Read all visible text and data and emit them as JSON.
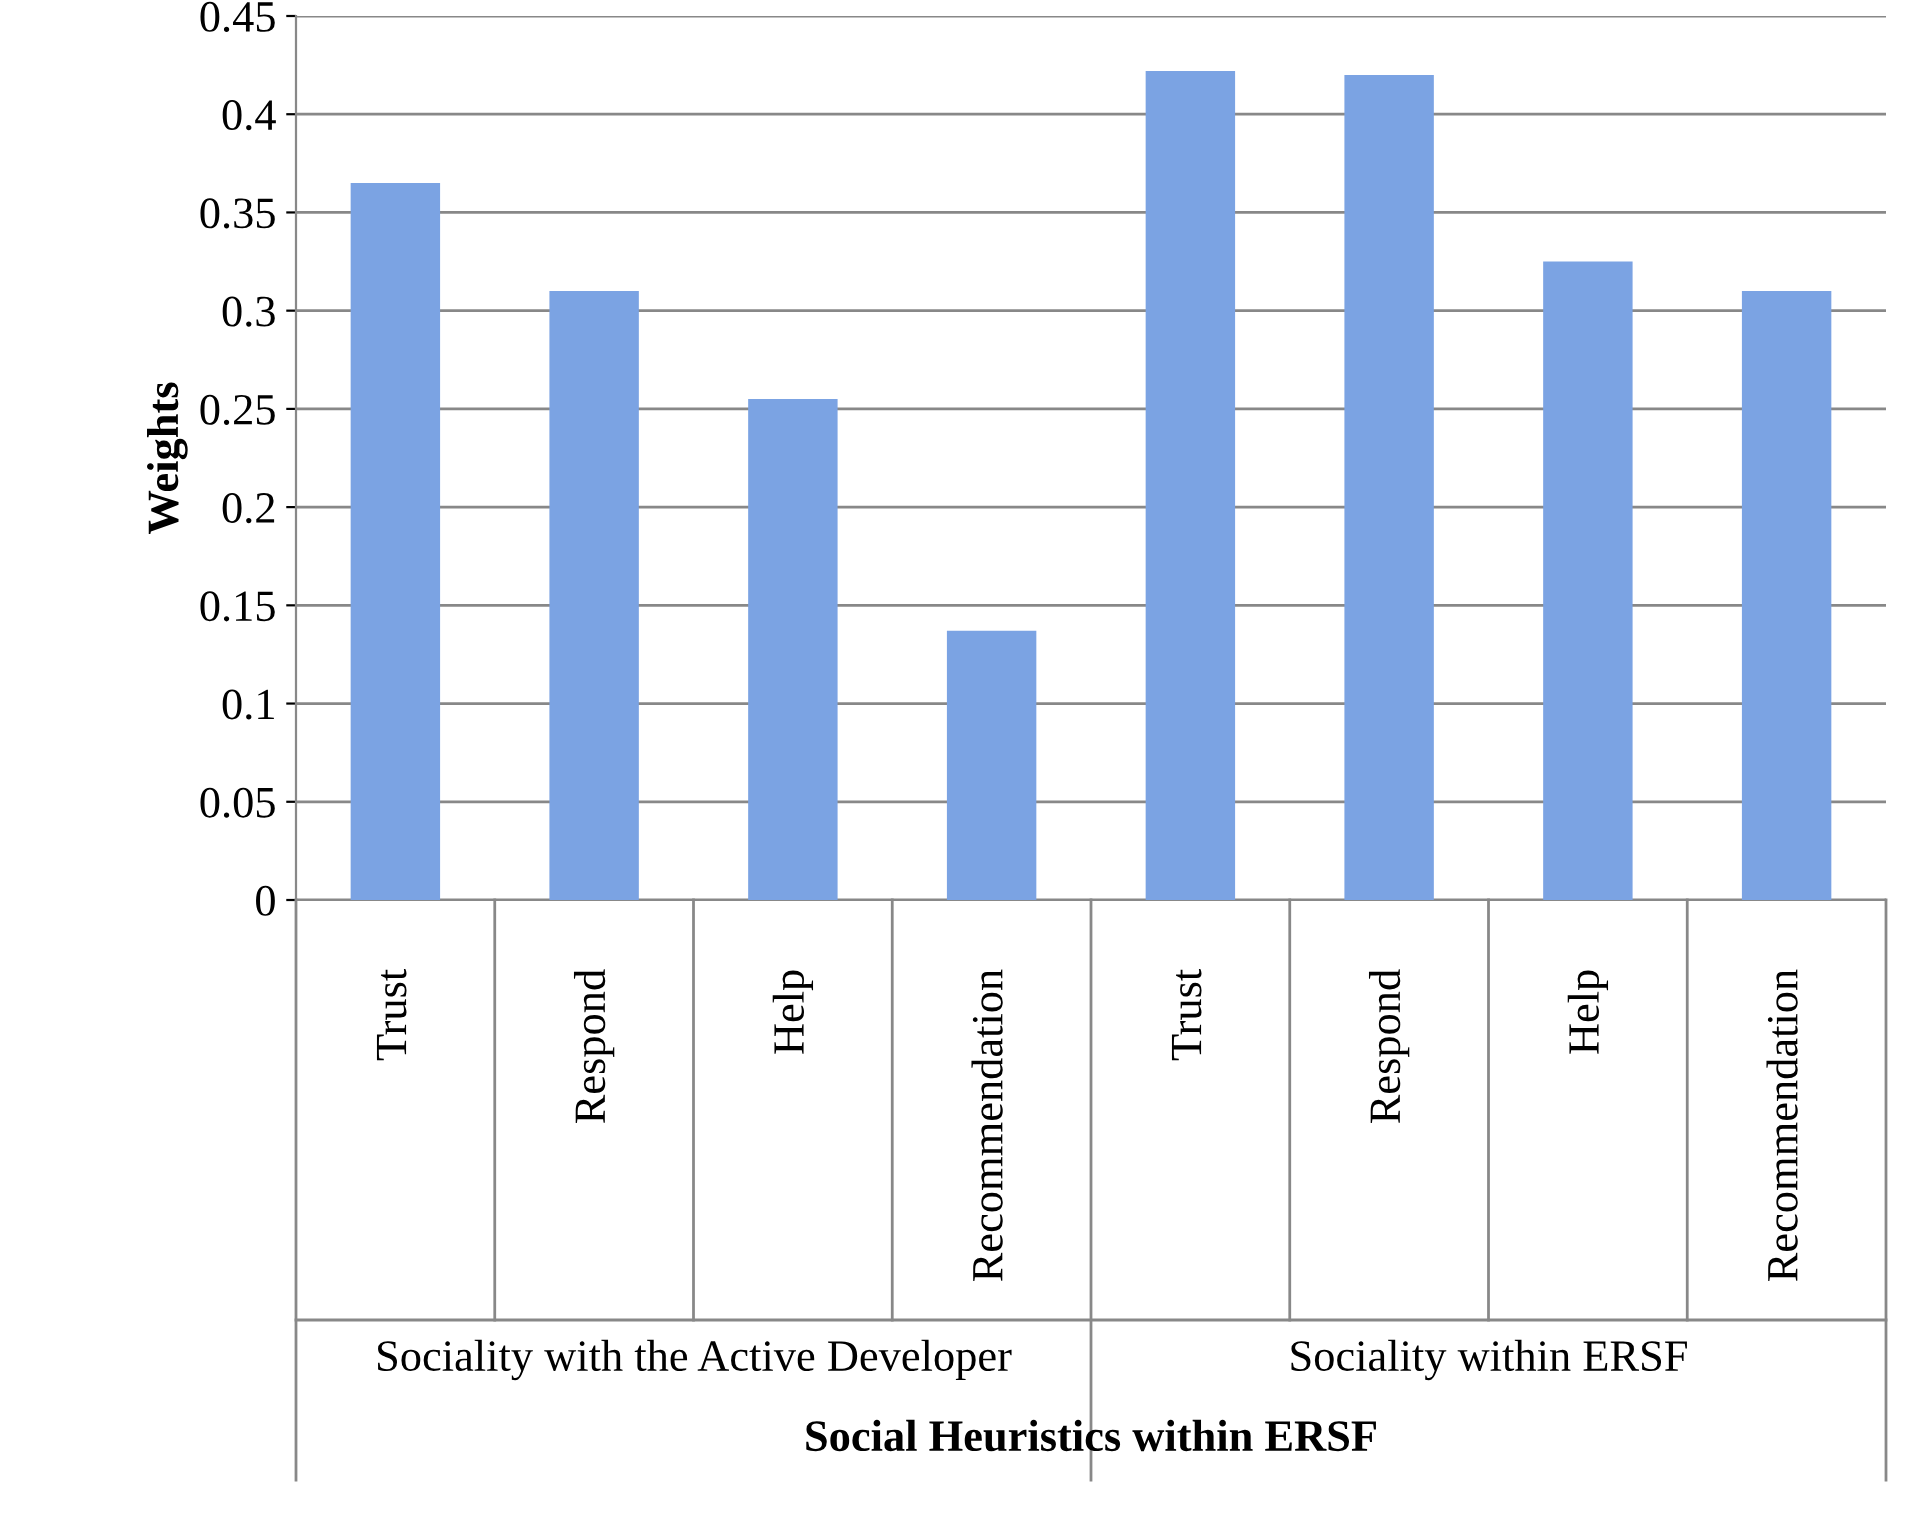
{
  "chart_data": {
    "type": "bar",
    "xlabel": "Social Heuristics within ERSF",
    "ylabel": "Weights",
    "categories": [
      "Trust",
      "Respond",
      "Help",
      "Recommendation",
      "Trust",
      "Respond",
      "Help",
      "Recommendation"
    ],
    "values": [
      0.365,
      0.31,
      0.255,
      0.137,
      0.422,
      0.42,
      0.325,
      0.31
    ],
    "color": "#7ba3e3",
    "annotations": [
      "Sociality with the Active Developer",
      "Sociality within ERSF"
    ],
    "ylim": [
      0,
      0.45
    ],
    "yticks": [
      0,
      0.05,
      0.1,
      0.15,
      0.2,
      0.25,
      0.3,
      0.35,
      0.4,
      0.45
    ],
    "grid": "y",
    "legend": false
  }
}
